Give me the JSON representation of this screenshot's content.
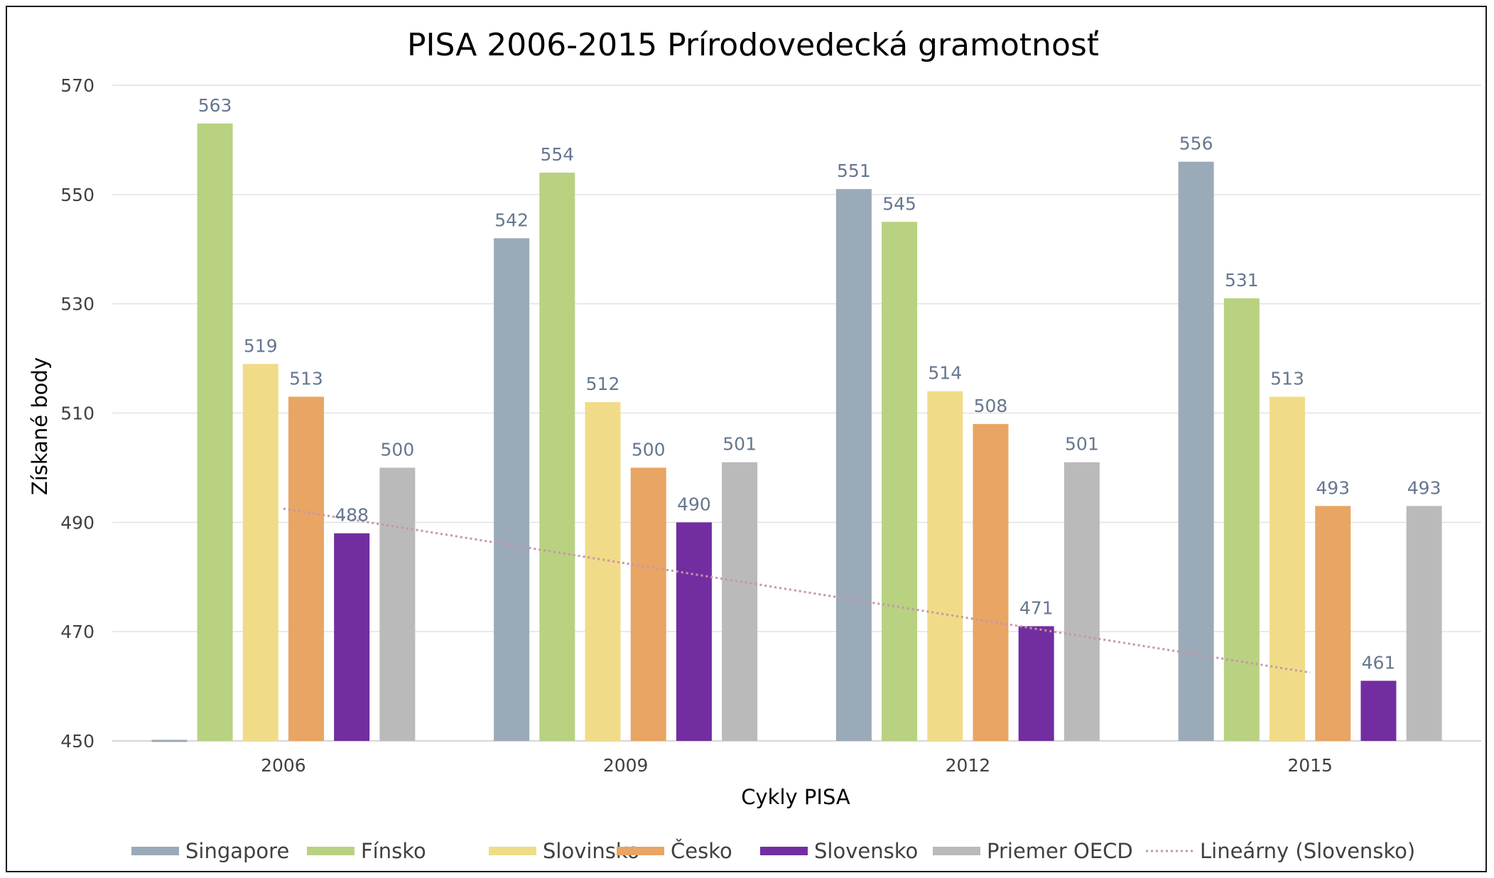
{
  "chart_data": {
    "type": "bar",
    "title": "PISA 2006-2015 Prírodovedecká gramotnosť",
    "xlabel": "Cykly  PISA",
    "ylabel": "Získané  body",
    "categories": [
      "2006",
      "2009",
      "2012",
      "2015"
    ],
    "ylim": [
      450,
      570
    ],
    "yticks": [
      450,
      470,
      490,
      510,
      530,
      550,
      570
    ],
    "grid": true,
    "legend_position": "bottom",
    "series": [
      {
        "name": "Singapore",
        "color": "#9aaab8",
        "values": [
          null,
          542,
          551,
          556
        ]
      },
      {
        "name": "Fínsko",
        "color": "#b8d281",
        "values": [
          563,
          554,
          545,
          531
        ]
      },
      {
        "name": "Slovinsko",
        "color": "#f0dc88",
        "values": [
          519,
          512,
          514,
          513
        ]
      },
      {
        "name": "Česko",
        "color": "#e8a563",
        "values": [
          513,
          500,
          508,
          493
        ]
      },
      {
        "name": "Slovensko",
        "color": "#722ea0",
        "values": [
          488,
          490,
          471,
          461
        ]
      },
      {
        "name": "Priemer  OECD",
        "color": "#bababa",
        "values": [
          500,
          501,
          501,
          493
        ]
      }
    ],
    "trendline": {
      "name": "Lineárny  (Slovensko)",
      "series": "Slovensko",
      "color": "#c796a8",
      "style": "dotted"
    }
  }
}
